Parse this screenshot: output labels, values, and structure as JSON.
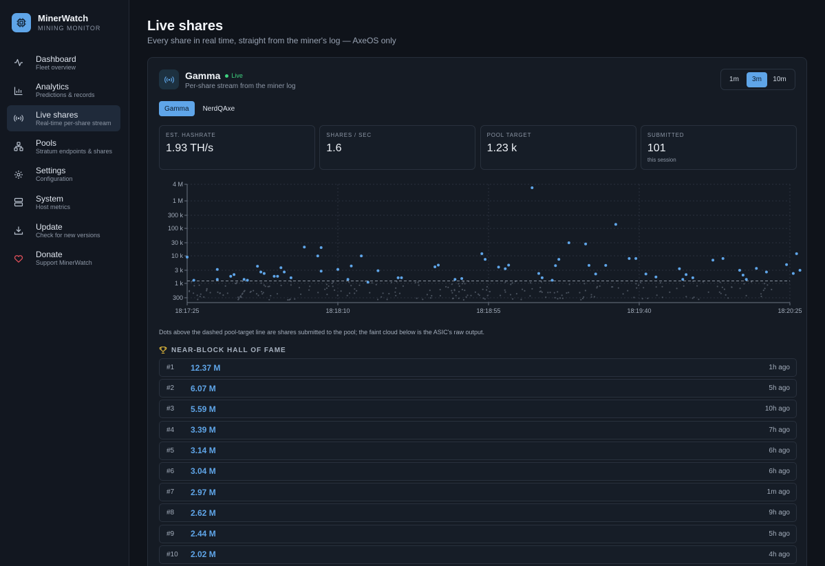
{
  "brand": {
    "name": "MinerWatch",
    "subtitle": "MINING MONITOR"
  },
  "nav": [
    {
      "label": "Dashboard",
      "sub": "Fleet overview",
      "icon": "activity-icon",
      "active": false
    },
    {
      "label": "Analytics",
      "sub": "Predictions & records",
      "icon": "bar-chart-icon",
      "active": false
    },
    {
      "label": "Live shares",
      "sub": "Real-time per-share stream",
      "icon": "radio-icon",
      "active": true
    },
    {
      "label": "Pools",
      "sub": "Stratum endpoints & shares",
      "icon": "network-icon",
      "active": false
    },
    {
      "label": "Settings",
      "sub": "Configuration",
      "icon": "gear-icon",
      "active": false
    },
    {
      "label": "System",
      "sub": "Host metrics",
      "icon": "server-icon",
      "active": false
    },
    {
      "label": "Update",
      "sub": "Check for new versions",
      "icon": "download-icon",
      "active": false
    },
    {
      "label": "Donate",
      "sub": "Support MinerWatch",
      "icon": "heart-icon",
      "active": false
    }
  ],
  "page": {
    "title": "Live shares",
    "subtitle": "Every share in real time, straight from the miner's log — AxeOS only"
  },
  "device": {
    "name": "Gamma",
    "status": "Live",
    "subtitle": "Per-share stream from the miner log"
  },
  "range": {
    "options": [
      "1m",
      "3m",
      "10m"
    ],
    "selected": "3m"
  },
  "tabs": {
    "items": [
      "Gamma",
      "NerdQAxe"
    ],
    "selected": "Gamma"
  },
  "stats": [
    {
      "label": "EST. HASHRATE",
      "value": "1.93 TH/s",
      "note": ""
    },
    {
      "label": "SHARES / SEC",
      "value": "1.6",
      "note": ""
    },
    {
      "label": "POOL TARGET",
      "value": "1.23 k",
      "note": ""
    },
    {
      "label": "SUBMITTED",
      "value": "101",
      "note": "this session"
    }
  ],
  "chart_data": {
    "type": "scatter",
    "y_scale": "log",
    "ylim": [
      200,
      4000000
    ],
    "y_ticks": [
      300,
      1000,
      3000,
      10000,
      30000,
      100000,
      300000,
      1000000,
      4000000
    ],
    "y_tick_labels": [
      "300",
      "1 k",
      "3 k",
      "10 k",
      "30 k",
      "100 k",
      "300 k",
      "1 M",
      "4 M"
    ],
    "x_ticks": [
      "18:17:25",
      "18:18:10",
      "18:18:55",
      "18:19:40",
      "18:20:25"
    ],
    "xlim": [
      "18:17:25",
      "18:20:25"
    ],
    "pool_target": 1230,
    "colors": {
      "submitted": "#5fa5e8",
      "raw": "#4a525e",
      "target_line": "#8a93a0"
    },
    "series": [
      {
        "kind": "submitted",
        "points": [
          {
            "x": "18:17:25",
            "y": 9000
          },
          {
            "x": "18:17:27",
            "y": 1300
          },
          {
            "x": "18:17:34",
            "y": 3200
          },
          {
            "x": "18:17:34",
            "y": 1400
          },
          {
            "x": "18:17:38",
            "y": 1800
          },
          {
            "x": "18:17:39",
            "y": 2100
          },
          {
            "x": "18:17:42",
            "y": 1400
          },
          {
            "x": "18:17:43",
            "y": 1300
          },
          {
            "x": "18:17:46",
            "y": 4200
          },
          {
            "x": "18:17:47",
            "y": 2600
          },
          {
            "x": "18:17:48",
            "y": 2300
          },
          {
            "x": "18:17:51",
            "y": 1800
          },
          {
            "x": "18:17:52",
            "y": 1800
          },
          {
            "x": "18:17:53",
            "y": 3700
          },
          {
            "x": "18:17:54",
            "y": 2600
          },
          {
            "x": "18:17:56",
            "y": 1600
          },
          {
            "x": "18:18:00",
            "y": 21000
          },
          {
            "x": "18:18:04",
            "y": 10000
          },
          {
            "x": "18:18:05",
            "y": 20000
          },
          {
            "x": "18:18:05",
            "y": 2800
          },
          {
            "x": "18:18:10",
            "y": 3200
          },
          {
            "x": "18:18:13",
            "y": 1400
          },
          {
            "x": "18:18:14",
            "y": 4300
          },
          {
            "x": "18:18:17",
            "y": 10000
          },
          {
            "x": "18:18:19",
            "y": 1100
          },
          {
            "x": "18:18:22",
            "y": 2900
          },
          {
            "x": "18:18:28",
            "y": 1600
          },
          {
            "x": "18:18:29",
            "y": 1600
          },
          {
            "x": "18:18:39",
            "y": 4000
          },
          {
            "x": "18:18:40",
            "y": 4600
          },
          {
            "x": "18:18:45",
            "y": 1400
          },
          {
            "x": "18:18:47",
            "y": 1500
          },
          {
            "x": "18:18:53",
            "y": 12000
          },
          {
            "x": "18:18:54",
            "y": 7500
          },
          {
            "x": "18:18:58",
            "y": 3900
          },
          {
            "x": "18:19:00",
            "y": 3400
          },
          {
            "x": "18:19:01",
            "y": 4600
          },
          {
            "x": "18:19:08",
            "y": 3000000
          },
          {
            "x": "18:19:10",
            "y": 2300
          },
          {
            "x": "18:19:11",
            "y": 1600
          },
          {
            "x": "18:19:14",
            "y": 1300
          },
          {
            "x": "18:19:15",
            "y": 4400
          },
          {
            "x": "18:19:16",
            "y": 7500
          },
          {
            "x": "18:19:19",
            "y": 30000
          },
          {
            "x": "18:19:24",
            "y": 27000
          },
          {
            "x": "18:19:25",
            "y": 4500
          },
          {
            "x": "18:19:27",
            "y": 2200
          },
          {
            "x": "18:19:30",
            "y": 4500
          },
          {
            "x": "18:19:33",
            "y": 140000
          },
          {
            "x": "18:19:37",
            "y": 8000
          },
          {
            "x": "18:19:39",
            "y": 8000
          },
          {
            "x": "18:19:42",
            "y": 2200
          },
          {
            "x": "18:19:45",
            "y": 1700
          },
          {
            "x": "18:19:52",
            "y": 3400
          },
          {
            "x": "18:19:53",
            "y": 1400
          },
          {
            "x": "18:19:54",
            "y": 2100
          },
          {
            "x": "18:19:56",
            "y": 1600
          },
          {
            "x": "18:20:02",
            "y": 7000
          },
          {
            "x": "18:20:05",
            "y": 8000
          },
          {
            "x": "18:20:10",
            "y": 3000
          },
          {
            "x": "18:20:11",
            "y": 2000
          },
          {
            "x": "18:20:12",
            "y": 1400
          },
          {
            "x": "18:20:15",
            "y": 3500
          },
          {
            "x": "18:20:18",
            "y": 2600
          },
          {
            "x": "18:20:24",
            "y": 4800
          },
          {
            "x": "18:20:26",
            "y": 2300
          },
          {
            "x": "18:20:27",
            "y": 12000
          },
          {
            "x": "18:20:28",
            "y": 3000
          }
        ]
      }
    ],
    "raw_cloud": {
      "range": [
        250,
        1200
      ],
      "count": 240
    }
  },
  "chart_note": "Dots above the dashed pool-target line are shares submitted to the pool; the faint cloud below is the ASIC's raw output.",
  "hall_of_fame": {
    "title": "NEAR-BLOCK HALL OF FAME",
    "entries": [
      {
        "rank": "#1",
        "value": "12.37 M",
        "ago": "1h ago"
      },
      {
        "rank": "#2",
        "value": "6.07 M",
        "ago": "5h ago"
      },
      {
        "rank": "#3",
        "value": "5.59 M",
        "ago": "10h ago"
      },
      {
        "rank": "#4",
        "value": "3.39 M",
        "ago": "7h ago"
      },
      {
        "rank": "#5",
        "value": "3.14 M",
        "ago": "6h ago"
      },
      {
        "rank": "#6",
        "value": "3.04 M",
        "ago": "6h ago"
      },
      {
        "rank": "#7",
        "value": "2.97 M",
        "ago": "1m ago"
      },
      {
        "rank": "#8",
        "value": "2.62 M",
        "ago": "9h ago"
      },
      {
        "rank": "#9",
        "value": "2.44 M",
        "ago": "5h ago"
      },
      {
        "rank": "#10",
        "value": "2.02 M",
        "ago": "4h ago"
      }
    ]
  }
}
